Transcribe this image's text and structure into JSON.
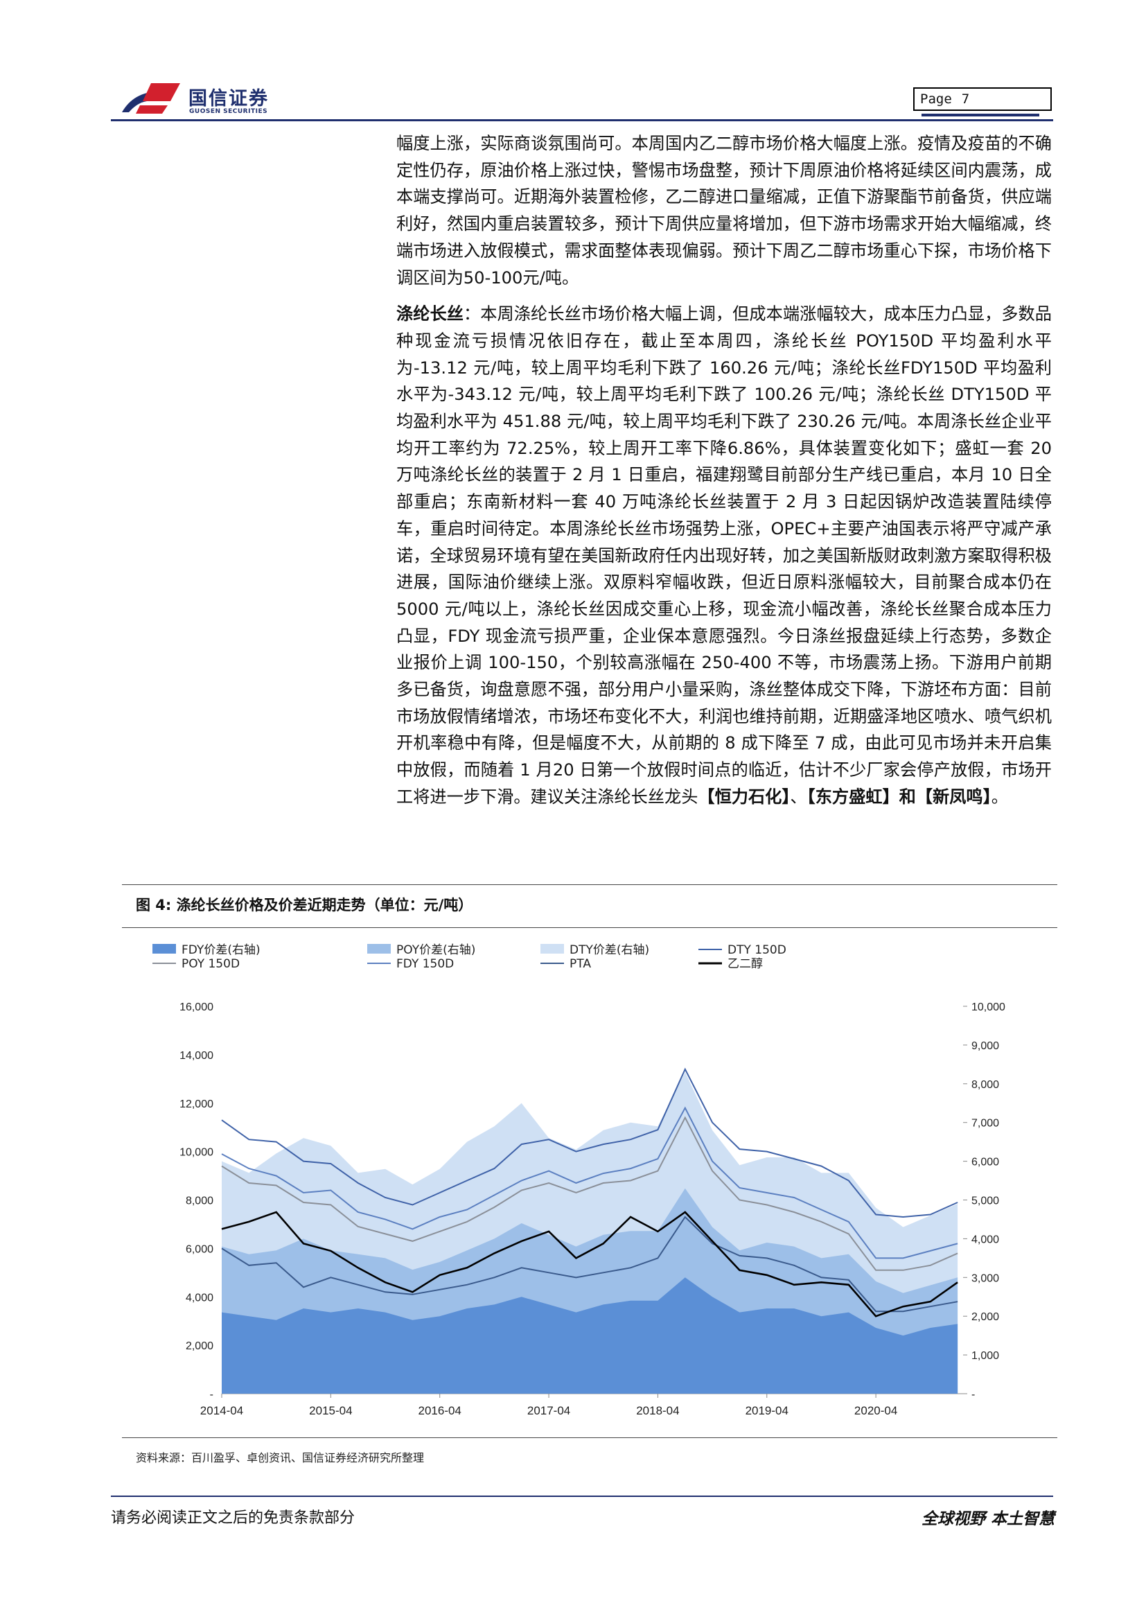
{
  "header": {
    "brand_cn": "国信证券",
    "brand_en": "GUOSEN SECURITIES",
    "page_label": "Page",
    "page_number": "7"
  },
  "paragraphs": {
    "p1": "幅度上涨，实际商谈氛围尚可。本周国内乙二醇市场价格大幅度上涨。疫情及疫苗的不确定性仍存，原油价格上涨过快，警惕市场盘整，预计下周原油价格将延续区间内震荡，成本端支撑尚可。近期海外装置检修，乙二醇进口量缩减，正值下游聚酯节前备货，供应端利好，然国内重启装置较多，预计下周供应量将增加，但下游市场需求开始大幅缩减，终端市场进入放假模式，需求面整体表现偏弱。预计下周乙二醇市场重心下探，市场价格下调区间为50-100元/吨。",
    "p2_lead": "涤纶长丝",
    "p2_body": "：本周涤纶长丝市场价格大幅上调，但成本端涨幅较大，成本压力凸显，多数品种现金流亏损情况依旧存在，截止至本周四，涤纶长丝 POY150D 平均盈利水平为-13.12 元/吨，较上周平均毛利下跌了 160.26 元/吨；涤纶长丝FDY150D 平均盈利水平为-343.12 元/吨，较上周平均毛利下跌了 100.26 元/吨；涤纶长丝 DTY150D 平均盈利水平为 451.88 元/吨，较上周平均毛利下跌了 230.26 元/吨。本周涤长丝企业平均开工率约为 72.25%，较上周开工率下降6.86%，具体装置变化如下；盛虹一套 20 万吨涤纶长丝的装置于 2 月 1 日重启，福建翔鹭目前部分生产线已重启，本月 10 日全部重启；东南新材料一套 40 万吨涤纶长丝装置于 2 月 3 日起因锅炉改造装置陆续停车，重启时间待定。本周涤纶长丝市场强势上涨，OPEC+主要产油国表示将严守减产承诺，全球贸易环境有望在美国新政府任内出现好转，加之美国新版财政刺激方案取得积极进展，国际油价继续上涨。双原料窄幅收跌，但近日原料涨幅较大，目前聚合成本仍在 5000 元/吨以上，涤纶长丝因成交重心上移，现金流小幅改善，涤纶长丝聚合成本压力凸显，FDY 现金流亏损严重，企业保本意愿强烈。今日涤丝报盘延续上行态势，多数企业报价上调 100-150，个别较高涨幅在 250-400 不等，市场震荡上扬。下游用户前期多已备货，询盘意愿不强，部分用户小量采购，涤丝整体成交下降，下游坯布方面：目前市场放假情绪增浓，市场坯布变化不大，利润也维持前期，近期盛泽地区喷水、喷气织机开机率稳中有降，但是幅度不大，从前期的 8 成下降至 7 成，由此可见市场并未开启集中放假，而随着 1 月20 日第一个放假时间点的临近，估计不少厂家会停产放假，市场开工将进一步下滑。建议关注涤纶长丝龙头",
    "p2_tail1": "【恒力石化】",
    "p2_sep1": "、",
    "p2_tail2": "【东方盛虹】",
    "p2_sep2": "和",
    "p2_tail3": "【新凤鸣】",
    "p2_end": "。"
  },
  "figure": {
    "title": "图 4:  涤纶长丝价格及价差近期走势（单位：元/吨）",
    "source": "资料来源：百川盈孚、卓创资讯、国信证券经济研究所整理"
  },
  "chart_data": {
    "type": "line",
    "x_ticks": [
      "2014-04",
      "2015-04",
      "2016-04",
      "2017-04",
      "2018-04",
      "2019-04",
      "2020-04"
    ],
    "y_left_ticks": [
      "16,000",
      "14,000",
      "12,000",
      "10,000",
      "8,000",
      "6,000",
      "4,000",
      "2,000",
      "-"
    ],
    "y_right_ticks": [
      "10,000",
      "9,000",
      "8,000",
      "7,000",
      "6,000",
      "5,000",
      "4,000",
      "3,000",
      "2,000",
      "1,000",
      "-"
    ],
    "ylim_left": [
      0,
      16000
    ],
    "ylim_right": [
      0,
      10000
    ],
    "legend": [
      "FDY价差(右轴)",
      "POY价差(右轴)",
      "DTY价差(右轴)",
      "DTY 150D",
      "POY 150D",
      "FDY 150D",
      "PTA",
      "乙二醇"
    ],
    "colors": {
      "FDY价差(右轴)": "#5b8fd6",
      "POY价差(右轴)": "#9dbfe8",
      "DTY价差(右轴)": "#cfe0f4",
      "DTY 150D": "#3f62a8",
      "POY 150D": "#8a8f98",
      "FDY 150D": "#5b7fc0",
      "PTA": "#3a5a8c",
      "乙二醇": "#000000"
    },
    "x_time": [
      2014.25,
      2014.5,
      2014.75,
      2015.0,
      2015.25,
      2015.5,
      2015.75,
      2016.0,
      2016.25,
      2016.5,
      2016.75,
      2017.0,
      2017.25,
      2017.5,
      2017.75,
      2018.0,
      2018.25,
      2018.5,
      2018.75,
      2019.0,
      2019.25,
      2019.5,
      2019.75,
      2020.0,
      2020.25,
      2020.5,
      2020.75,
      2021.0
    ],
    "series": [
      {
        "name": "DTY 150D",
        "axis": "left",
        "values": [
          11300,
          10500,
          10400,
          9600,
          9500,
          8700,
          8100,
          7800,
          8300,
          8800,
          9300,
          10300,
          10500,
          10000,
          10300,
          10500,
          10900,
          13400,
          11200,
          10100,
          10000,
          9700,
          9400,
          8800,
          7400,
          7300,
          7400,
          7900
        ]
      },
      {
        "name": "POY 150D",
        "axis": "left",
        "values": [
          9400,
          8700,
          8600,
          7900,
          7800,
          6900,
          6600,
          6300,
          6700,
          7100,
          7700,
          8400,
          8700,
          8300,
          8700,
          8800,
          9200,
          11400,
          9200,
          8000,
          7800,
          7500,
          7100,
          6600,
          5100,
          5100,
          5300,
          5800
        ]
      },
      {
        "name": "FDY 150D",
        "axis": "left",
        "values": [
          9900,
          9300,
          9000,
          8300,
          8400,
          7500,
          7200,
          6800,
          7300,
          7600,
          8200,
          8800,
          9200,
          8700,
          9100,
          9300,
          9700,
          11800,
          9600,
          8500,
          8300,
          8100,
          7600,
          7100,
          5600,
          5600,
          5900,
          6200
        ]
      },
      {
        "name": "PTA",
        "axis": "left",
        "values": [
          6000,
          5300,
          5400,
          4400,
          4800,
          4500,
          4200,
          4100,
          4300,
          4500,
          4800,
          5200,
          5000,
          4800,
          5000,
          5200,
          5600,
          7300,
          6200,
          5700,
          5600,
          5300,
          4800,
          4700,
          3400,
          3400,
          3600,
          3800
        ]
      },
      {
        "name": "乙二醇",
        "axis": "left",
        "values": [
          6800,
          7100,
          7500,
          6200,
          5900,
          5200,
          4600,
          4200,
          4900,
          5200,
          5800,
          6300,
          6700,
          5600,
          6200,
          7300,
          6700,
          7500,
          6300,
          5100,
          4900,
          4500,
          4600,
          4500,
          3200,
          3600,
          3800,
          4600
        ]
      },
      {
        "name": "DTY价差(右轴)",
        "axis": "right",
        "values": [
          6000,
          5700,
          6200,
          6600,
          6400,
          5700,
          5800,
          5400,
          5800,
          6500,
          6900,
          7500,
          6600,
          6300,
          6800,
          7000,
          6900,
          8300,
          6800,
          5900,
          6100,
          6100,
          5700,
          5700,
          4800,
          4300,
          4600,
          4900
        ]
      },
      {
        "name": "POY价差(右轴)",
        "axis": "right",
        "values": [
          3800,
          3600,
          3700,
          4000,
          3700,
          3600,
          3500,
          3200,
          3400,
          3700,
          4000,
          4400,
          4100,
          3800,
          4100,
          4200,
          4200,
          5300,
          4300,
          3700,
          3900,
          3800,
          3500,
          3600,
          2900,
          2600,
          2800,
          3000
        ]
      },
      {
        "name": "FDY价差(右轴)",
        "axis": "right",
        "values": [
          2100,
          2000,
          1900,
          2200,
          2100,
          2200,
          2100,
          1900,
          2000,
          2200,
          2300,
          2500,
          2300,
          2100,
          2300,
          2400,
          2400,
          3000,
          2500,
          2100,
          2200,
          2200,
          2000,
          2100,
          1700,
          1500,
          1700,
          1800
        ]
      }
    ]
  },
  "footer": {
    "left": "请务必阅读正文之后的免责条款部分",
    "right": "全球视野   本土智慧"
  }
}
